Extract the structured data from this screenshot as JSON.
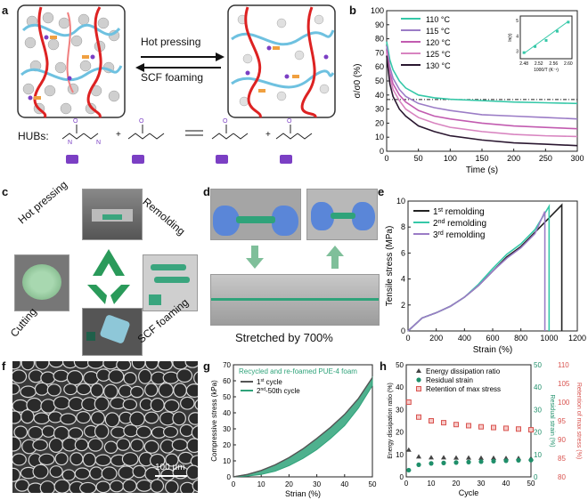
{
  "panel_labels": {
    "a": "a",
    "b": "b",
    "c": "c",
    "d": "d",
    "e": "e",
    "f": "f",
    "g": "g",
    "h": "h"
  },
  "panel_a": {
    "arrow_top": "Hot pressing",
    "arrow_bottom": "SCF foaming",
    "hubs_label": "HUBs:"
  },
  "panel_c": {
    "steps": [
      "Hot pressing",
      "Remolding",
      "SCF foaming",
      "Cutting"
    ]
  },
  "panel_d": {
    "caption": "Stretched by 700%"
  },
  "panel_f": {
    "scale_bar": "100 μm"
  },
  "colors": {
    "green_accent": "#2fa37a",
    "foam_green": "#3aa57e",
    "red_square": "#d9534f",
    "gray_series": "#555555"
  },
  "chart_data": [
    {
      "panel": "b",
      "type": "line",
      "xlabel": "Time (s)",
      "ylabel": "σ/σ0 (%)",
      "xlim": [
        0,
        300
      ],
      "ylim": [
        0,
        100
      ],
      "xticks": [
        0,
        50,
        100,
        150,
        200,
        250,
        300
      ],
      "yticks": [
        0,
        10,
        20,
        30,
        40,
        50,
        60,
        70,
        80,
        90,
        100
      ],
      "reference_line_y": 36.8,
      "legend_position": "top-left",
      "series": [
        {
          "name": "110 °C",
          "color": "#35c8a8",
          "x": [
            0,
            5,
            10,
            20,
            30,
            50,
            75,
            100,
            150,
            200,
            250,
            300
          ],
          "y": [
            78,
            65,
            58,
            50,
            45,
            40,
            38,
            37,
            36,
            35,
            34.5,
            34
          ]
        },
        {
          "name": "115 °C",
          "color": "#9b7cc6",
          "x": [
            0,
            5,
            10,
            20,
            30,
            50,
            75,
            100,
            150,
            200,
            250,
            300
          ],
          "y": [
            75,
            60,
            52,
            44,
            39,
            34,
            31,
            29,
            26,
            25,
            24,
            23
          ]
        },
        {
          "name": "120 °C",
          "color": "#c25bb0",
          "x": [
            0,
            5,
            10,
            20,
            30,
            50,
            75,
            100,
            150,
            200,
            250,
            300
          ],
          "y": [
            72,
            56,
            48,
            40,
            35,
            29,
            25,
            23,
            20,
            18,
            17,
            16
          ]
        },
        {
          "name": "125 °C",
          "color": "#d884c0",
          "x": [
            0,
            5,
            10,
            20,
            30,
            50,
            75,
            100,
            150,
            200,
            250,
            300
          ],
          "y": [
            70,
            53,
            44,
            36,
            30,
            24,
            20,
            17,
            14,
            12,
            11,
            10.5
          ]
        },
        {
          "name": "130 °C",
          "color": "#2a1730",
          "x": [
            0,
            5,
            10,
            20,
            30,
            50,
            75,
            100,
            150,
            200,
            250,
            300
          ],
          "y": [
            68,
            48,
            39,
            30,
            25,
            18,
            14,
            11,
            8,
            6,
            5,
            4
          ]
        }
      ],
      "inset": {
        "type": "scatter",
        "xlabel": "1000/T (K⁻¹)",
        "ylabel": "ln(τ)",
        "xticks": [
          2.48,
          2.52,
          2.56,
          2.6
        ],
        "yticks": [
          3,
          4,
          5
        ],
        "x": [
          2.48,
          2.51,
          2.54,
          2.57,
          2.6
        ],
        "y": [
          2.9,
          3.3,
          3.7,
          4.3,
          4.9
        ]
      }
    },
    {
      "panel": "e",
      "type": "line",
      "xlabel": "Strain (%)",
      "ylabel": "Tensile stress (MPa)",
      "xlim": [
        0,
        1200
      ],
      "ylim": [
        0,
        10
      ],
      "xticks": [
        0,
        200,
        400,
        600,
        800,
        1000,
        1200
      ],
      "yticks": [
        0,
        2,
        4,
        6,
        8,
        10
      ],
      "legend_position": "top-left",
      "series": [
        {
          "name_base": "1",
          "name_sup": "st",
          "name_rest": " remolding",
          "color": "#222222",
          "x": [
            0,
            100,
            200,
            300,
            400,
            500,
            600,
            700,
            800,
            900,
            1000,
            1090,
            1090
          ],
          "y": [
            0,
            1.0,
            1.4,
            1.9,
            2.6,
            3.5,
            4.6,
            5.7,
            6.5,
            7.6,
            8.7,
            9.7,
            0
          ]
        },
        {
          "name_base": "2",
          "name_sup": "nd",
          "name_rest": " remolding",
          "color": "#35c8a8",
          "x": [
            0,
            100,
            200,
            300,
            400,
            500,
            600,
            700,
            800,
            900,
            1000,
            1000
          ],
          "y": [
            0,
            1.0,
            1.4,
            1.9,
            2.6,
            3.6,
            4.8,
            5.9,
            6.7,
            7.8,
            9.6,
            0
          ]
        },
        {
          "name_base": "3",
          "name_sup": "rd",
          "name_rest": " remolding",
          "color": "#9b7cc6",
          "x": [
            0,
            100,
            200,
            300,
            400,
            500,
            600,
            700,
            800,
            900,
            970,
            970
          ],
          "y": [
            0,
            1.0,
            1.4,
            1.9,
            2.6,
            3.5,
            4.6,
            5.6,
            6.4,
            7.5,
            9.2,
            0
          ]
        }
      ]
    },
    {
      "panel": "g",
      "type": "area",
      "title": "Recycled and re-foamed PUE-4 foam",
      "xlabel": "Strian (%)",
      "ylabel": "Compressive stress (kPa)",
      "xlim": [
        0,
        50
      ],
      "ylim": [
        0,
        70
      ],
      "xticks": [
        0,
        10,
        20,
        30,
        40,
        50
      ],
      "yticks": [
        0,
        10,
        20,
        30,
        40,
        50,
        60,
        70
      ],
      "series": [
        {
          "name_base": "1",
          "name_sup": "st",
          "name_rest": " cycle",
          "color": "#555555",
          "x": [
            0,
            5,
            10,
            15,
            20,
            25,
            30,
            35,
            40,
            45,
            50
          ],
          "y": [
            0,
            1.5,
            4,
            7.5,
            12,
            17.5,
            24,
            31,
            39,
            49,
            62
          ]
        },
        {
          "name_base": "2",
          "name_sup": "nd",
          "name_rest": "-50th cycle",
          "color": "#2fa37a",
          "x": [
            0,
            5,
            10,
            15,
            20,
            25,
            30,
            35,
            40,
            45,
            50
          ],
          "y_low": [
            0,
            0.5,
            1.5,
            3.5,
            7,
            11.5,
            17,
            24,
            32,
            43,
            57
          ],
          "y_high": [
            0,
            1.5,
            4,
            7.5,
            12,
            17.5,
            24,
            31,
            39,
            49,
            62
          ]
        }
      ]
    },
    {
      "panel": "h",
      "type": "scatter",
      "xlabel": "Cycle",
      "ylabel_left": "Energy dissipation ratio (%)",
      "ylabel_mid": "Residual strain (%)",
      "ylabel_right": "Retention of max stress (%)",
      "xlim": [
        0,
        50
      ],
      "ylim_left": [
        0,
        50
      ],
      "ylim_mid": [
        0,
        50
      ],
      "ylim_right": [
        80,
        110
      ],
      "xticks": [
        0,
        10,
        20,
        30,
        40,
        50
      ],
      "yticks_left": [
        0,
        10,
        20,
        30,
        40,
        50
      ],
      "yticks_mid": [
        0,
        10,
        20,
        30,
        40,
        50
      ],
      "yticks_right": [
        80,
        85,
        90,
        95,
        100,
        105,
        110
      ],
      "x": [
        1,
        5,
        10,
        15,
        20,
        25,
        30,
        35,
        40,
        45,
        50
      ],
      "series": [
        {
          "name": "Energy dissipation ratio",
          "axis": "left",
          "marker": "triangle",
          "color": "#444444",
          "y": [
            12,
            9,
            8.6,
            8.6,
            8.5,
            8.5,
            8.4,
            8.4,
            8.3,
            8.3,
            8.2
          ]
        },
        {
          "name": "Residual strain",
          "axis": "mid",
          "marker": "circle",
          "color": "#1f8f6a",
          "y": [
            3,
            5.4,
            6,
            6.2,
            6.4,
            6.6,
            6.8,
            7.0,
            7.2,
            7.4,
            7.5
          ]
        },
        {
          "name": "Retention of max stress",
          "axis": "right",
          "marker": "square",
          "color": "#d9534f",
          "y": [
            100,
            96,
            95,
            94.5,
            94,
            93.7,
            93.4,
            93.2,
            93,
            92.8,
            92.6
          ]
        }
      ]
    }
  ]
}
